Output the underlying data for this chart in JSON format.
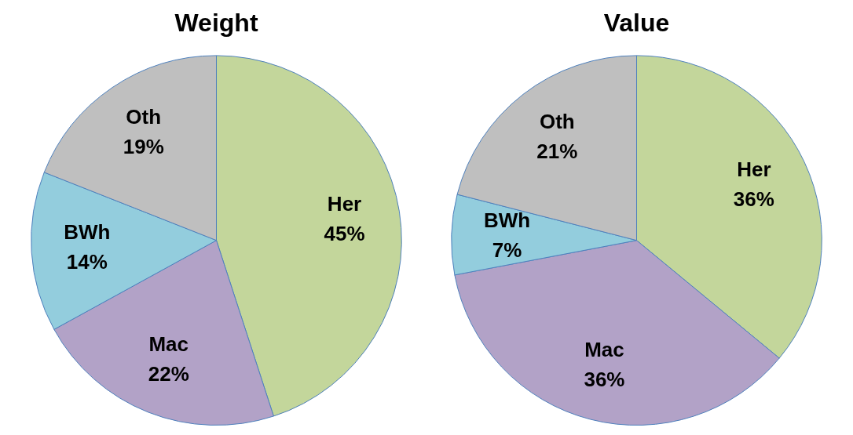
{
  "chart_data": [
    {
      "type": "pie",
      "title": "Weight",
      "categories": [
        "Her",
        "Mac",
        "BWh",
        "Oth"
      ],
      "values": [
        45,
        22,
        14,
        19
      ],
      "value_labels": [
        "45%",
        "22%",
        "14%",
        "19%"
      ],
      "colors": [
        "#c3d69b",
        "#b2a2c7",
        "#93cddd",
        "#bfbfbf"
      ],
      "legend": false
    },
    {
      "type": "pie",
      "title": "Value",
      "categories": [
        "Her",
        "Mac",
        "BWh",
        "Oth"
      ],
      "values": [
        36,
        36,
        7,
        21
      ],
      "value_labels": [
        "36%",
        "36%",
        "7%",
        "21%"
      ],
      "colors": [
        "#c3d69b",
        "#b2a2c7",
        "#93cddd",
        "#bfbfbf"
      ],
      "legend": false
    }
  ]
}
